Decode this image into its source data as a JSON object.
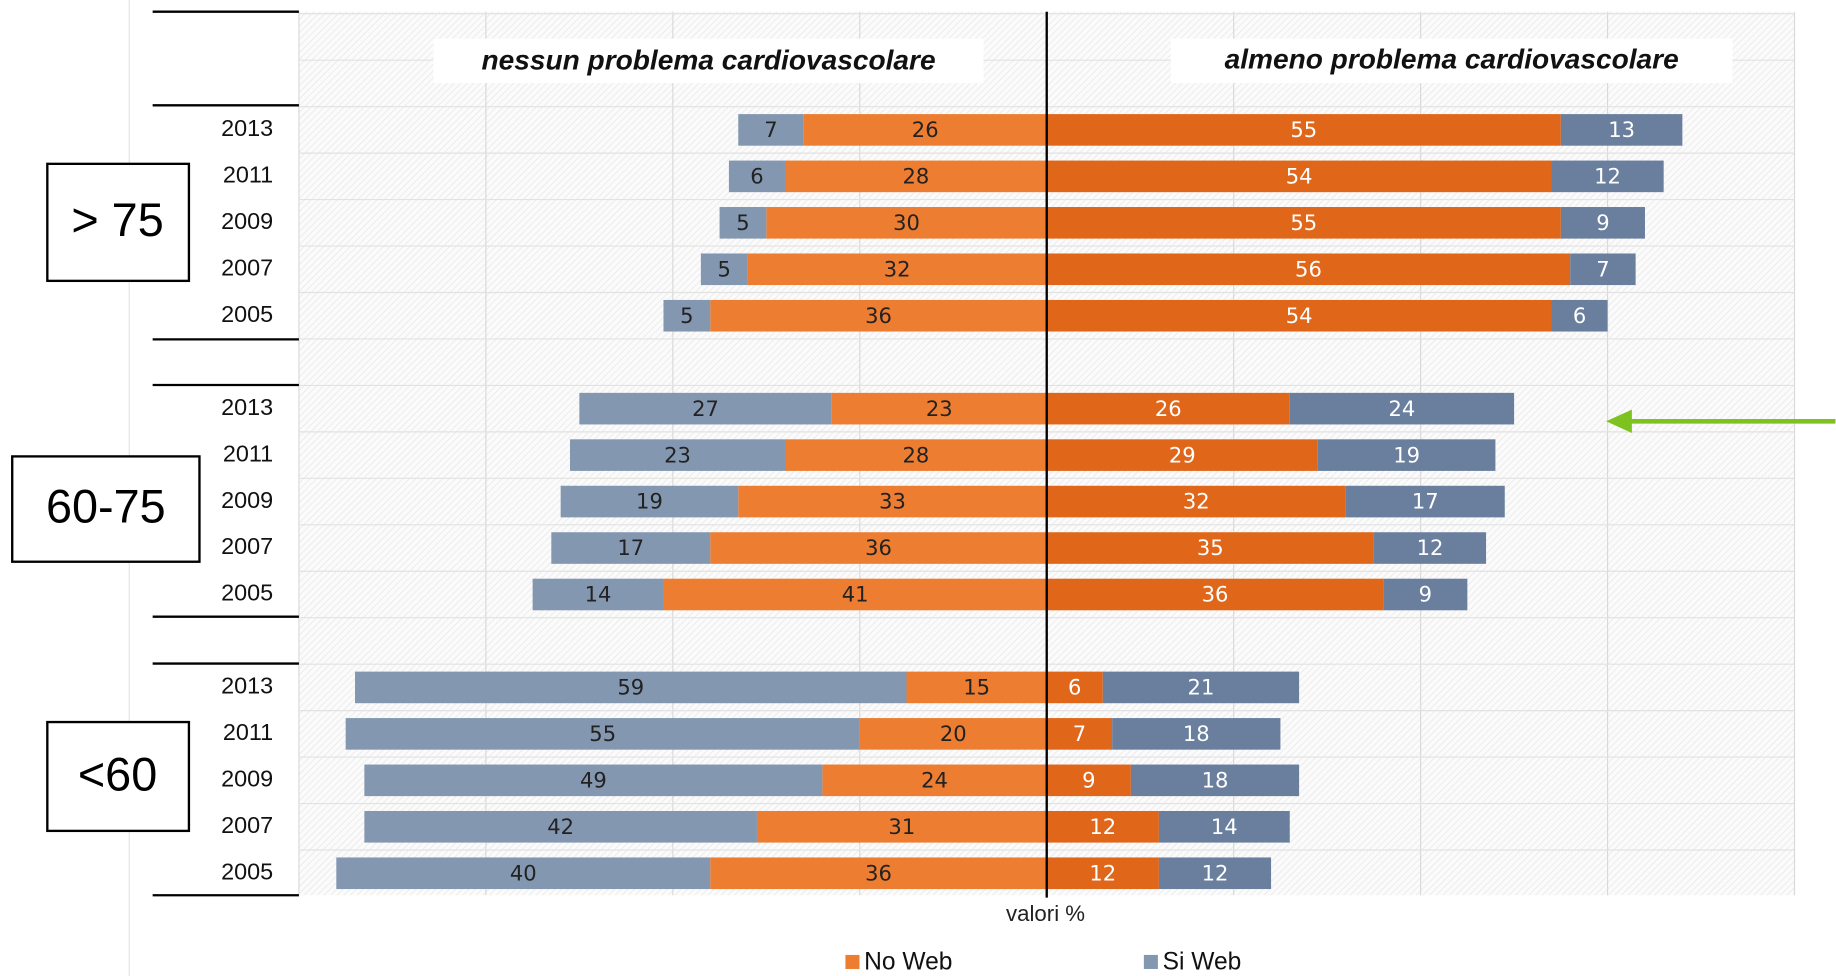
{
  "chart_data": {
    "type": "diverging-bar",
    "xlabel": "valori %",
    "xlim": [
      -80,
      80
    ],
    "groups": [
      {
        "label": "> 75",
        "categories": [
          "2013",
          "2011",
          "2009",
          "2007",
          "2005"
        ]
      },
      {
        "label": "60-75",
        "categories": [
          "2013",
          "2011",
          "2009",
          "2007",
          "2005"
        ]
      },
      {
        "label": "<60",
        "categories": [
          "2013",
          "2011",
          "2009",
          "2007",
          "2005"
        ]
      }
    ],
    "sides": [
      {
        "title": "nessun problema cardiovascolare",
        "series": [
          {
            "name": "No Web",
            "color": "#ED7D31",
            "values": [
              26,
              28,
              30,
              32,
              36,
              23,
              28,
              33,
              36,
              41,
              15,
              20,
              24,
              31,
              36
            ]
          },
          {
            "name": "Si Web",
            "color": "#8497B0",
            "values": [
              7,
              6,
              5,
              5,
              5,
              27,
              23,
              19,
              17,
              14,
              59,
              55,
              49,
              42,
              40
            ]
          }
        ]
      },
      {
        "title": "almeno problema cardiovascolare",
        "series": [
          {
            "name": "No Web",
            "color": "#E0661A",
            "values": [
              55,
              54,
              55,
              56,
              54,
              26,
              29,
              32,
              35,
              36,
              6,
              7,
              9,
              12,
              12
            ]
          },
          {
            "name": "Si Web",
            "color": "#6A7F9E",
            "values": [
              13,
              12,
              9,
              7,
              6,
              24,
              19,
              17,
              12,
              9,
              21,
              18,
              18,
              14,
              12
            ]
          }
        ]
      }
    ]
  }
}
